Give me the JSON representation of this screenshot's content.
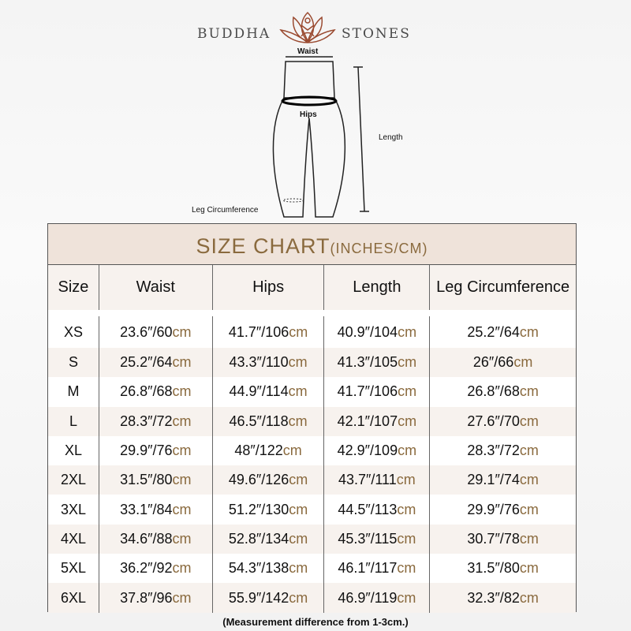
{
  "brand": {
    "left": "BUDDHA",
    "right": "STONES",
    "accent": "#8a6a3e"
  },
  "diagram": {
    "waist": "Waist",
    "hips": "Hips",
    "length": "Length",
    "leg": "Leg Circumference"
  },
  "table": {
    "title": "SIZE CHART",
    "title_unit": "(INCHES/CM)",
    "headers": [
      "Size",
      "Waist",
      "Hips",
      "Length",
      "Leg Circumference"
    ],
    "unit": "cm",
    "rows": [
      {
        "size": "XS",
        "v": [
          "23.6″/60",
          "41.7″/106",
          "40.9″/104",
          "25.2″/64"
        ]
      },
      {
        "size": "S",
        "v": [
          "25.2″/64",
          "43.3″/110",
          "41.3″/105",
          "26″/66"
        ]
      },
      {
        "size": "M",
        "v": [
          "26.8″/68",
          "44.9″/114",
          "41.7″/106",
          "26.8″/68"
        ]
      },
      {
        "size": "L",
        "v": [
          "28.3″/72",
          "46.5″/118",
          "42.1″/107",
          "27.6″/70"
        ]
      },
      {
        "size": "XL",
        "v": [
          "29.9″/76",
          "48″/122",
          "42.9″/109",
          "28.3″/72"
        ]
      },
      {
        "size": "2XL",
        "v": [
          "31.5″/80",
          "49.6″/126",
          "43.7″/111",
          "29.1″/74"
        ]
      },
      {
        "size": "3XL",
        "v": [
          "33.1″/84",
          "51.2″/130",
          "44.5″/113",
          "29.9″/76"
        ]
      },
      {
        "size": "4XL",
        "v": [
          "34.6″/88",
          "52.8″/134",
          "45.3″/115",
          "30.7″/78"
        ]
      },
      {
        "size": "5XL",
        "v": [
          "36.2″/92",
          "54.3″/138",
          "46.1″/117",
          "31.5″/80"
        ]
      },
      {
        "size": "6XL",
        "v": [
          "37.8″/96",
          "55.9″/142",
          "46.9″/119",
          "32.3″/82"
        ]
      }
    ]
  },
  "note": "(Measurement difference from 1-3cm.)"
}
